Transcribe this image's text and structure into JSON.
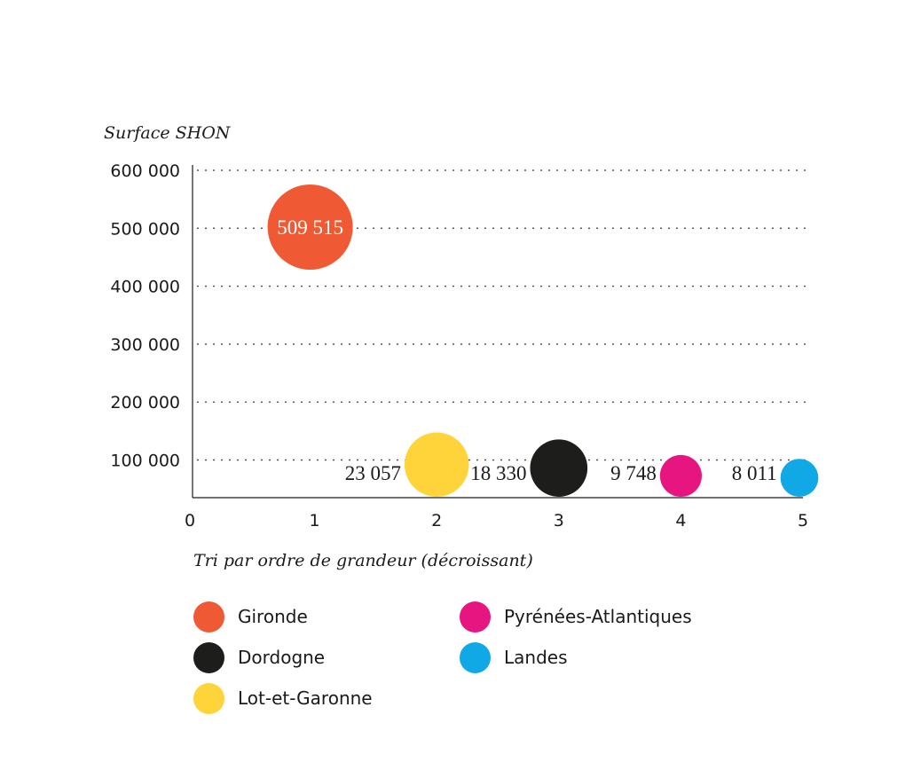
{
  "chart_data": {
    "type": "scatter",
    "ylabel": "Surface SHON",
    "xlabel": "Tri par ordre de grandeur (décroissant)",
    "x_ticks": [
      "0",
      "1",
      "2",
      "3",
      "4",
      "5"
    ],
    "y_ticks": [
      "100 000",
      "200 000",
      "300 000",
      "400 000",
      "500 000",
      "600 000"
    ],
    "xlim": [
      0,
      5
    ],
    "ylim": [
      35000,
      600000
    ],
    "grid": "dotted horizontal",
    "series": [
      {
        "name": "Gironde",
        "x": 1,
        "y": 509515,
        "label": "509 515",
        "color": "#ef5a35"
      },
      {
        "name": "Lot-et-Garonne",
        "x": 2,
        "y": 23057,
        "label": "23 057",
        "color": "#ffd43b"
      },
      {
        "name": "Dordogne",
        "x": 3,
        "y": 18330,
        "label": "18 330",
        "color": "#1d1d1b"
      },
      {
        "name": "Pyrénées-Atlantiques",
        "x": 4,
        "y": 9748,
        "label": "9 748",
        "color": "#e6157f"
      },
      {
        "name": "Landes",
        "x": 5,
        "y": 8011,
        "label": "8 011",
        "color": "#10a9e6"
      }
    ]
  },
  "legend": [
    {
      "label": "Gironde",
      "color": "#ef5a35"
    },
    {
      "label": "Pyrénées-Atlantiques",
      "color": "#e6157f"
    },
    {
      "label": "Dordogne",
      "color": "#1d1d1b"
    },
    {
      "label": "Landes",
      "color": "#10a9e6"
    },
    {
      "label": "Lot-et-Garonne",
      "color": "#ffd43b"
    }
  ]
}
